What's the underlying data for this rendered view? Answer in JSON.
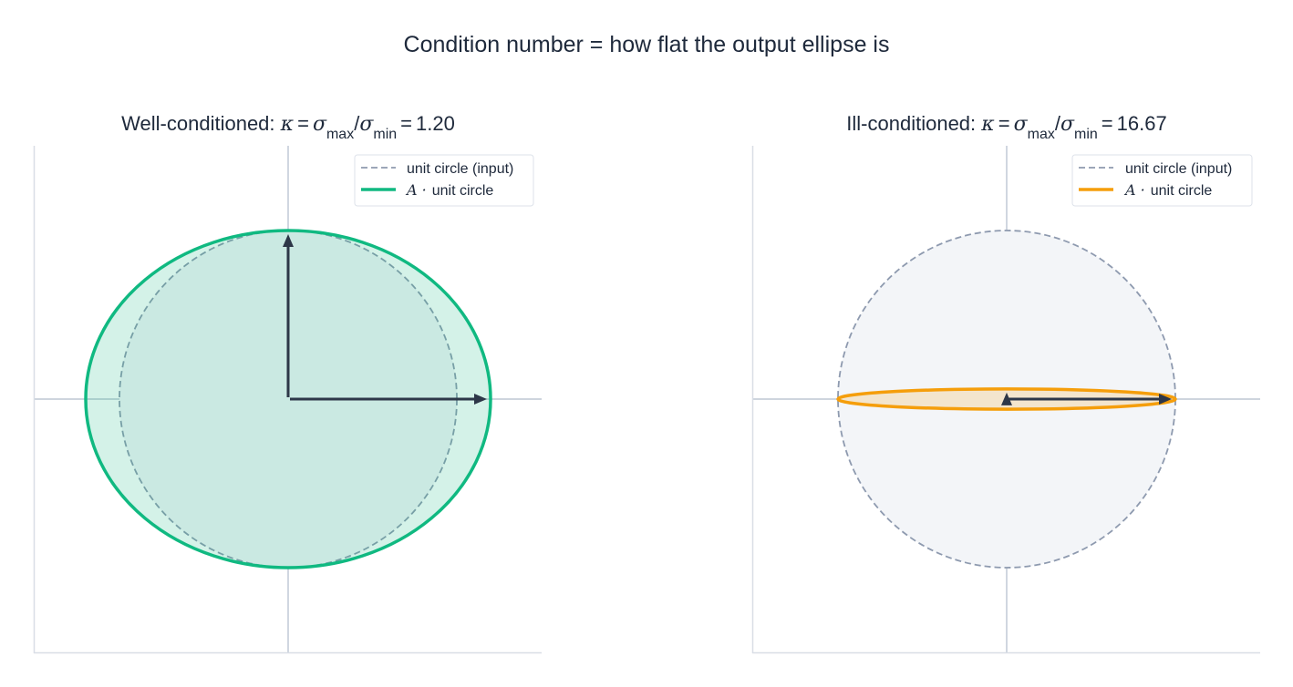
{
  "figure": {
    "title": "Condition number = how flat the output ellipse is"
  },
  "panels": [
    {
      "title_prefix": "Well-conditioned: ",
      "kappa_value": "1.20",
      "sigma_max": 1.2,
      "sigma_min": 1.0,
      "color": "#10b981",
      "fill": "rgba(16,185,129,0.18)",
      "legend": {
        "input_label": "unit circle (input)",
        "output_label": "unit circle"
      }
    },
    {
      "title_prefix": "Ill-conditioned: ",
      "kappa_value": "16.67",
      "sigma_max": 1.0,
      "sigma_min": 0.06,
      "color": "#f59e0b",
      "fill": "rgba(245,158,11,0.18)",
      "legend": {
        "input_label": "unit circle (input)",
        "output_label": "unit circle"
      }
    }
  ],
  "math": {
    "kappa": "κ",
    "equals": "=",
    "sigma": "σ",
    "sub_max": "max",
    "sub_min": "min",
    "slash": "/",
    "A_dot": "A ·"
  },
  "colors": {
    "circle_stroke": "#8e9aaf",
    "axis": "#b0bccb",
    "arrow": "#2d3748",
    "frame": "#d9dee6"
  }
}
